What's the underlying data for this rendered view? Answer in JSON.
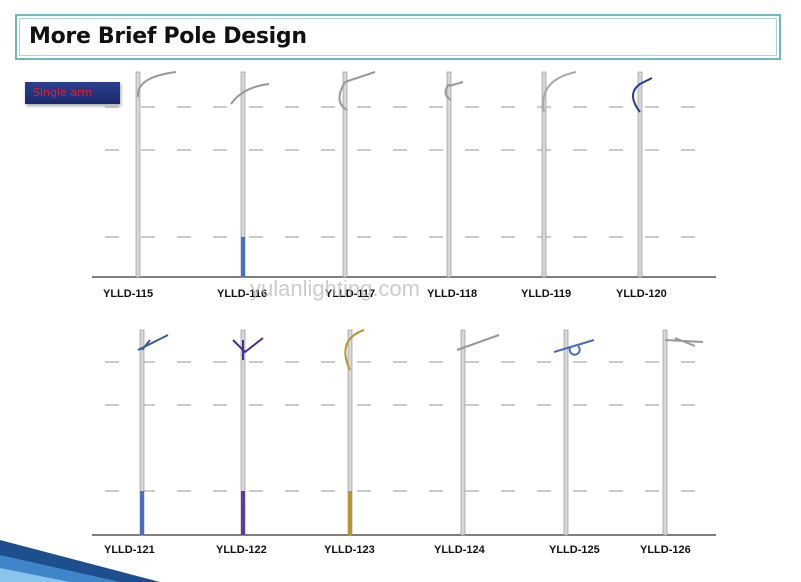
{
  "header": {
    "title": "More Brief Pole Design"
  },
  "badge": "Single arm",
  "watermark": "yulanlighting.com",
  "rows": [
    [
      "YLLD-115",
      "YLLD-116",
      "YLLD-117",
      "YLLD-118",
      "YLLD-119",
      "YLLD-120"
    ],
    [
      "YLLD-121",
      "YLLD-122",
      "YLLD-123",
      "YLLD-124",
      "YLLD-125",
      "YLLD-126"
    ]
  ]
}
